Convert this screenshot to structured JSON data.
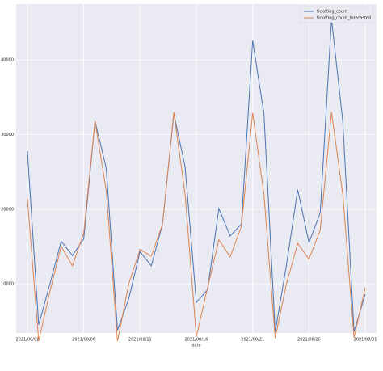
{
  "chart_data": {
    "type": "line",
    "x": [
      "2021/08/01",
      "2021/08/02",
      "2021/08/03",
      "2021/08/04",
      "2021/08/05",
      "2021/08/06",
      "2021/08/07",
      "2021/08/08",
      "2021/08/09",
      "2021/08/10",
      "2021/08/11",
      "2021/08/12",
      "2021/08/13",
      "2021/08/14",
      "2021/08/15",
      "2021/08/16",
      "2021/08/17",
      "2021/08/18",
      "2021/08/19",
      "2021/08/20",
      "2021/08/21",
      "2021/08/22",
      "2021/08/23",
      "2021/08/24",
      "2021/08/25",
      "2021/08/26",
      "2021/08/27",
      "2021/08/28",
      "2021/08/29",
      "2021/08/30",
      "2021/08/31"
    ],
    "series": [
      {
        "name": "ticketing_count",
        "color": "#4c72b0",
        "values": [
          27800,
          4500,
          10000,
          15700,
          13800,
          16000,
          31800,
          25500,
          3800,
          8000,
          14300,
          12400,
          18000,
          32800,
          25700,
          7500,
          9200,
          20100,
          16400,
          18000,
          42600,
          32800,
          3500,
          12500,
          22600,
          15500,
          19500,
          45500,
          31800,
          3600,
          8600
        ]
      },
      {
        "name": "ticketing_count_forecasted",
        "color": "#dd8452",
        "values": [
          21400,
          2300,
          9000,
          15000,
          12400,
          16800,
          31800,
          22500,
          2300,
          10000,
          14600,
          13700,
          18000,
          33000,
          22000,
          2900,
          9500,
          15900,
          13600,
          17700,
          32900,
          22000,
          2700,
          10000,
          15400,
          13300,
          17200,
          33000,
          22000,
          2800,
          9500
        ]
      }
    ],
    "xlabel": "date",
    "xlim": [
      "2021/07/31",
      "2021/09/01"
    ],
    "xticks": [
      "2021/08/01",
      "2021/08/06",
      "2021/08/11",
      "2021/08/16",
      "2021/08/21",
      "2021/08/26",
      "2021/08/31"
    ],
    "ylim": [
      3400,
      47500
    ],
    "yticks": [
      10000,
      20000,
      30000,
      40000
    ],
    "grid": true,
    "legend": "upper right"
  }
}
